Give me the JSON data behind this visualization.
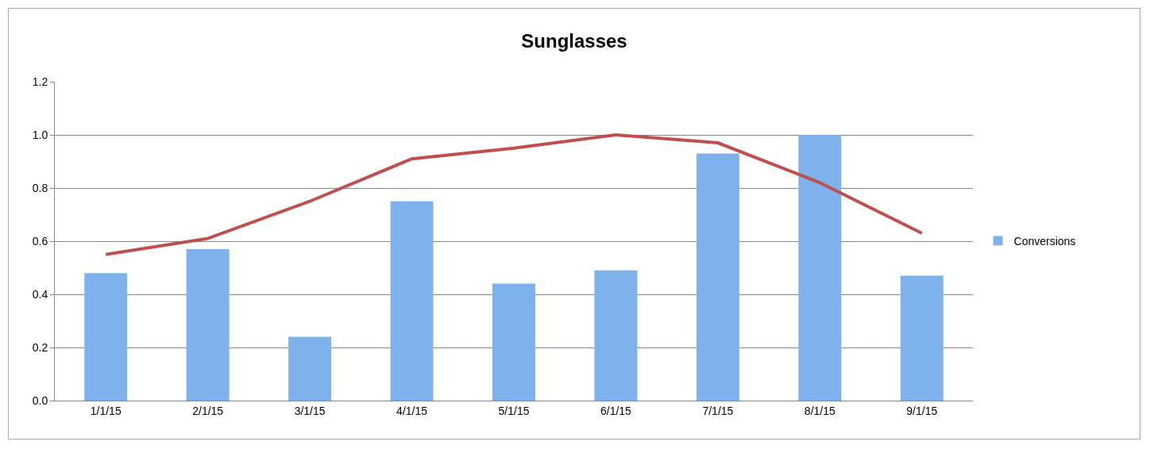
{
  "chart_data": {
    "type": "bar",
    "title": "Sunglasses",
    "categories": [
      "1/1/15",
      "2/1/15",
      "3/1/15",
      "4/1/15",
      "5/1/15",
      "6/1/15",
      "7/1/15",
      "8/1/15",
      "9/1/15"
    ],
    "series": [
      {
        "name": "Conversions",
        "color": "#7fb2ec",
        "values": [
          0.48,
          0.57,
          0.24,
          0.75,
          0.44,
          0.49,
          0.93,
          1.0,
          0.47
        ]
      },
      {
        "type": "line",
        "color": "#c0504d",
        "values": [
          0.55,
          0.61,
          0.75,
          0.91,
          0.95,
          1.0,
          0.97,
          0.82,
          0.63
        ]
      }
    ],
    "ylim": [
      0,
      1.2
    ],
    "yticks": [
      {
        "value": 0,
        "label": "0.0"
      },
      {
        "value": 0.2,
        "label": "0.2"
      },
      {
        "value": 0.4,
        "label": "0.4"
      },
      {
        "value": 0.6,
        "label": "0.6"
      },
      {
        "value": 0.8,
        "label": "0.8"
      },
      {
        "value": 1,
        "label": "1.0"
      },
      {
        "value": 1.2,
        "label": "1.2"
      }
    ],
    "grid": "y",
    "legend": "right",
    "marker": "none",
    "line_style": "solid"
  }
}
